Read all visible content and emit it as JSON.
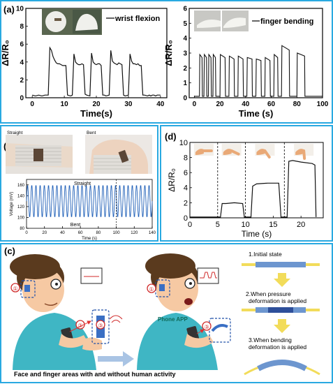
{
  "panel_labels": {
    "a": "(a)",
    "b": "(b)",
    "c": "(c)",
    "d": "(d)"
  },
  "photo_text": {
    "straight": "Straight",
    "bent": "Bent"
  },
  "illustration": {
    "caption": "Face and finger areas with and without human activity",
    "phone_app": "Phone APP",
    "markers": [
      "①",
      "②",
      "③",
      "③"
    ],
    "steps": [
      "1.Initial state",
      "2.When pressure",
      "deformation is applied",
      "3.When bending",
      "deformation is applied"
    ]
  },
  "colors": {
    "panel_border": "#29a9e1",
    "signal_dark": "#111111",
    "signal_blue": "#2060b8",
    "sensor_blue": "#3a6fc4",
    "arrow_yellow": "#f2dc5a",
    "arrow_blue": "#a9c4e4"
  },
  "chart_data": [
    {
      "id": "a1",
      "type": "line",
      "xlabel": "Time(s)",
      "ylabel": "ΔR/R₀",
      "xlim": [
        -2,
        42
      ],
      "ylim": [
        0,
        10
      ],
      "xticks": [
        0,
        10,
        20,
        30,
        40
      ],
      "yticks": [
        0,
        2,
        4,
        6,
        8,
        10
      ],
      "legend": "wrist flexion",
      "legend_position": "top-right",
      "series": [
        {
          "x": [
            0,
            1,
            2,
            3,
            4,
            5,
            5.5,
            6,
            6.5,
            7,
            7.5,
            8,
            8.5,
            9,
            9.5,
            10,
            10.5,
            11,
            12,
            12.5,
            13,
            13.5,
            14,
            14.5,
            15,
            15.5,
            16,
            16.5,
            17,
            18,
            18.5,
            19,
            19.5,
            20,
            20.5,
            21,
            21.5,
            22,
            22.5,
            23,
            24,
            24.5,
            25,
            25.5,
            26,
            26.5,
            27,
            27.5,
            28,
            28.5,
            29,
            30,
            30.5,
            31,
            31.5,
            32,
            32.5,
            33,
            33.5,
            34,
            34.5,
            35,
            36,
            36.5,
            37,
            37.5,
            38,
            38.5,
            39,
            40
          ],
          "y": [
            0.3,
            0.2,
            0.3,
            0.2,
            0.3,
            0.3,
            5.6,
            5.3,
            4.6,
            4.2,
            3.9,
            3.8,
            3.8,
            3.7,
            3.6,
            3.6,
            3.6,
            0.3,
            0.2,
            0.3,
            4.9,
            4.0,
            3.8,
            3.7,
            3.7,
            3.8,
            3.7,
            0.4,
            0.3,
            0.2,
            5.0,
            4.0,
            3.8,
            3.7,
            3.8,
            3.8,
            3.6,
            0.3,
            0.3,
            0.2,
            0.3,
            5.3,
            4.1,
            3.9,
            3.8,
            3.7,
            3.9,
            3.8,
            3.7,
            0.3,
            0.2,
            0.3,
            4.9,
            4.1,
            3.8,
            3.8,
            3.7,
            3.8,
            3.6,
            3.6,
            0.3,
            0.3,
            0.2,
            0.3,
            0.2,
            0.3,
            0.3,
            0.2,
            0.3,
            0.3
          ]
        }
      ]
    },
    {
      "id": "a2",
      "type": "line",
      "xlabel": "Time (s)",
      "ylabel": "ΔR/R₀",
      "xlim": [
        -4,
        100
      ],
      "ylim": [
        0,
        6
      ],
      "xticks": [
        0,
        20,
        40,
        60,
        80,
        100
      ],
      "yticks": [
        0,
        1,
        2,
        3,
        4,
        5,
        6
      ],
      "legend": "finger bending",
      "legend_position": "top-right",
      "series": [
        {
          "x": [
            0,
            4,
            4.3,
            6,
            6.3,
            7.5,
            7.8,
            9.5,
            9.8,
            11,
            11.3,
            13,
            13.3,
            14.5,
            14.8,
            16.5,
            16.8,
            20,
            20.3,
            24,
            24.3,
            27,
            27.3,
            31,
            31.3,
            34,
            34.3,
            38,
            38.3,
            41,
            41.3,
            45,
            45.3,
            48,
            48.3,
            52,
            52.3,
            55,
            55.3,
            59,
            59.3,
            62,
            62.3,
            65,
            65.3,
            68,
            68.3,
            74,
            74.3,
            80,
            80.3,
            86,
            86.3,
            90,
            90.3,
            100
          ],
          "y": [
            0.1,
            0.1,
            2.9,
            2.7,
            0.1,
            0.1,
            2.9,
            2.7,
            0.1,
            0.1,
            2.9,
            2.7,
            0.1,
            0.1,
            2.9,
            2.7,
            0.1,
            0.1,
            2.9,
            2.7,
            0.1,
            0.1,
            2.8,
            2.6,
            0.1,
            0.1,
            2.8,
            2.6,
            0.1,
            0.1,
            2.7,
            2.6,
            0.1,
            0.1,
            2.6,
            2.5,
            0.1,
            0.1,
            2.7,
            2.5,
            0.1,
            0.1,
            2.9,
            2.7,
            0.1,
            0.1,
            3.5,
            3.2,
            0.1,
            0.1,
            3.0,
            2.8,
            0.1,
            0.1,
            0.1,
            0.1
          ]
        }
      ]
    },
    {
      "id": "b",
      "type": "line",
      "xlabel": "Time (s)",
      "ylabel": "Voltage (mV)",
      "xlim": [
        0,
        140
      ],
      "ylim": [
        80,
        170
      ],
      "xticks": [
        0,
        20,
        40,
        60,
        80,
        100,
        120,
        140
      ],
      "yticks": [
        80,
        100,
        120,
        140,
        160
      ],
      "annotations": [
        "Straight",
        "Bent"
      ],
      "divider_x": 100,
      "signal": {
        "cycles": 30,
        "high": 160,
        "low": 100
      }
    },
    {
      "id": "d",
      "type": "line",
      "xlabel": "Time (s)",
      "ylabel": "ΔR/R₀",
      "xlim": [
        0,
        24
      ],
      "ylim": [
        0,
        10
      ],
      "xticks": [
        0,
        5,
        10,
        15,
        20
      ],
      "yticks": [
        0,
        2,
        4,
        6,
        8,
        10
      ],
      "dividers_x": [
        5,
        10,
        17
      ],
      "series": [
        {
          "x": [
            0,
            5.5,
            5.8,
            6.5,
            8,
            9.5,
            9.8,
            11,
            11.3,
            12,
            14,
            16,
            16.4,
            17.5,
            17.8,
            18.5,
            20,
            22,
            22.5,
            22.7
          ],
          "y": [
            0.1,
            0.1,
            1.9,
            1.9,
            2.0,
            1.9,
            0.1,
            0.1,
            4.2,
            4.5,
            4.6,
            4.6,
            0.1,
            0.1,
            7.5,
            7.6,
            7.4,
            7.2,
            7.0,
            0.1
          ]
        }
      ]
    }
  ]
}
